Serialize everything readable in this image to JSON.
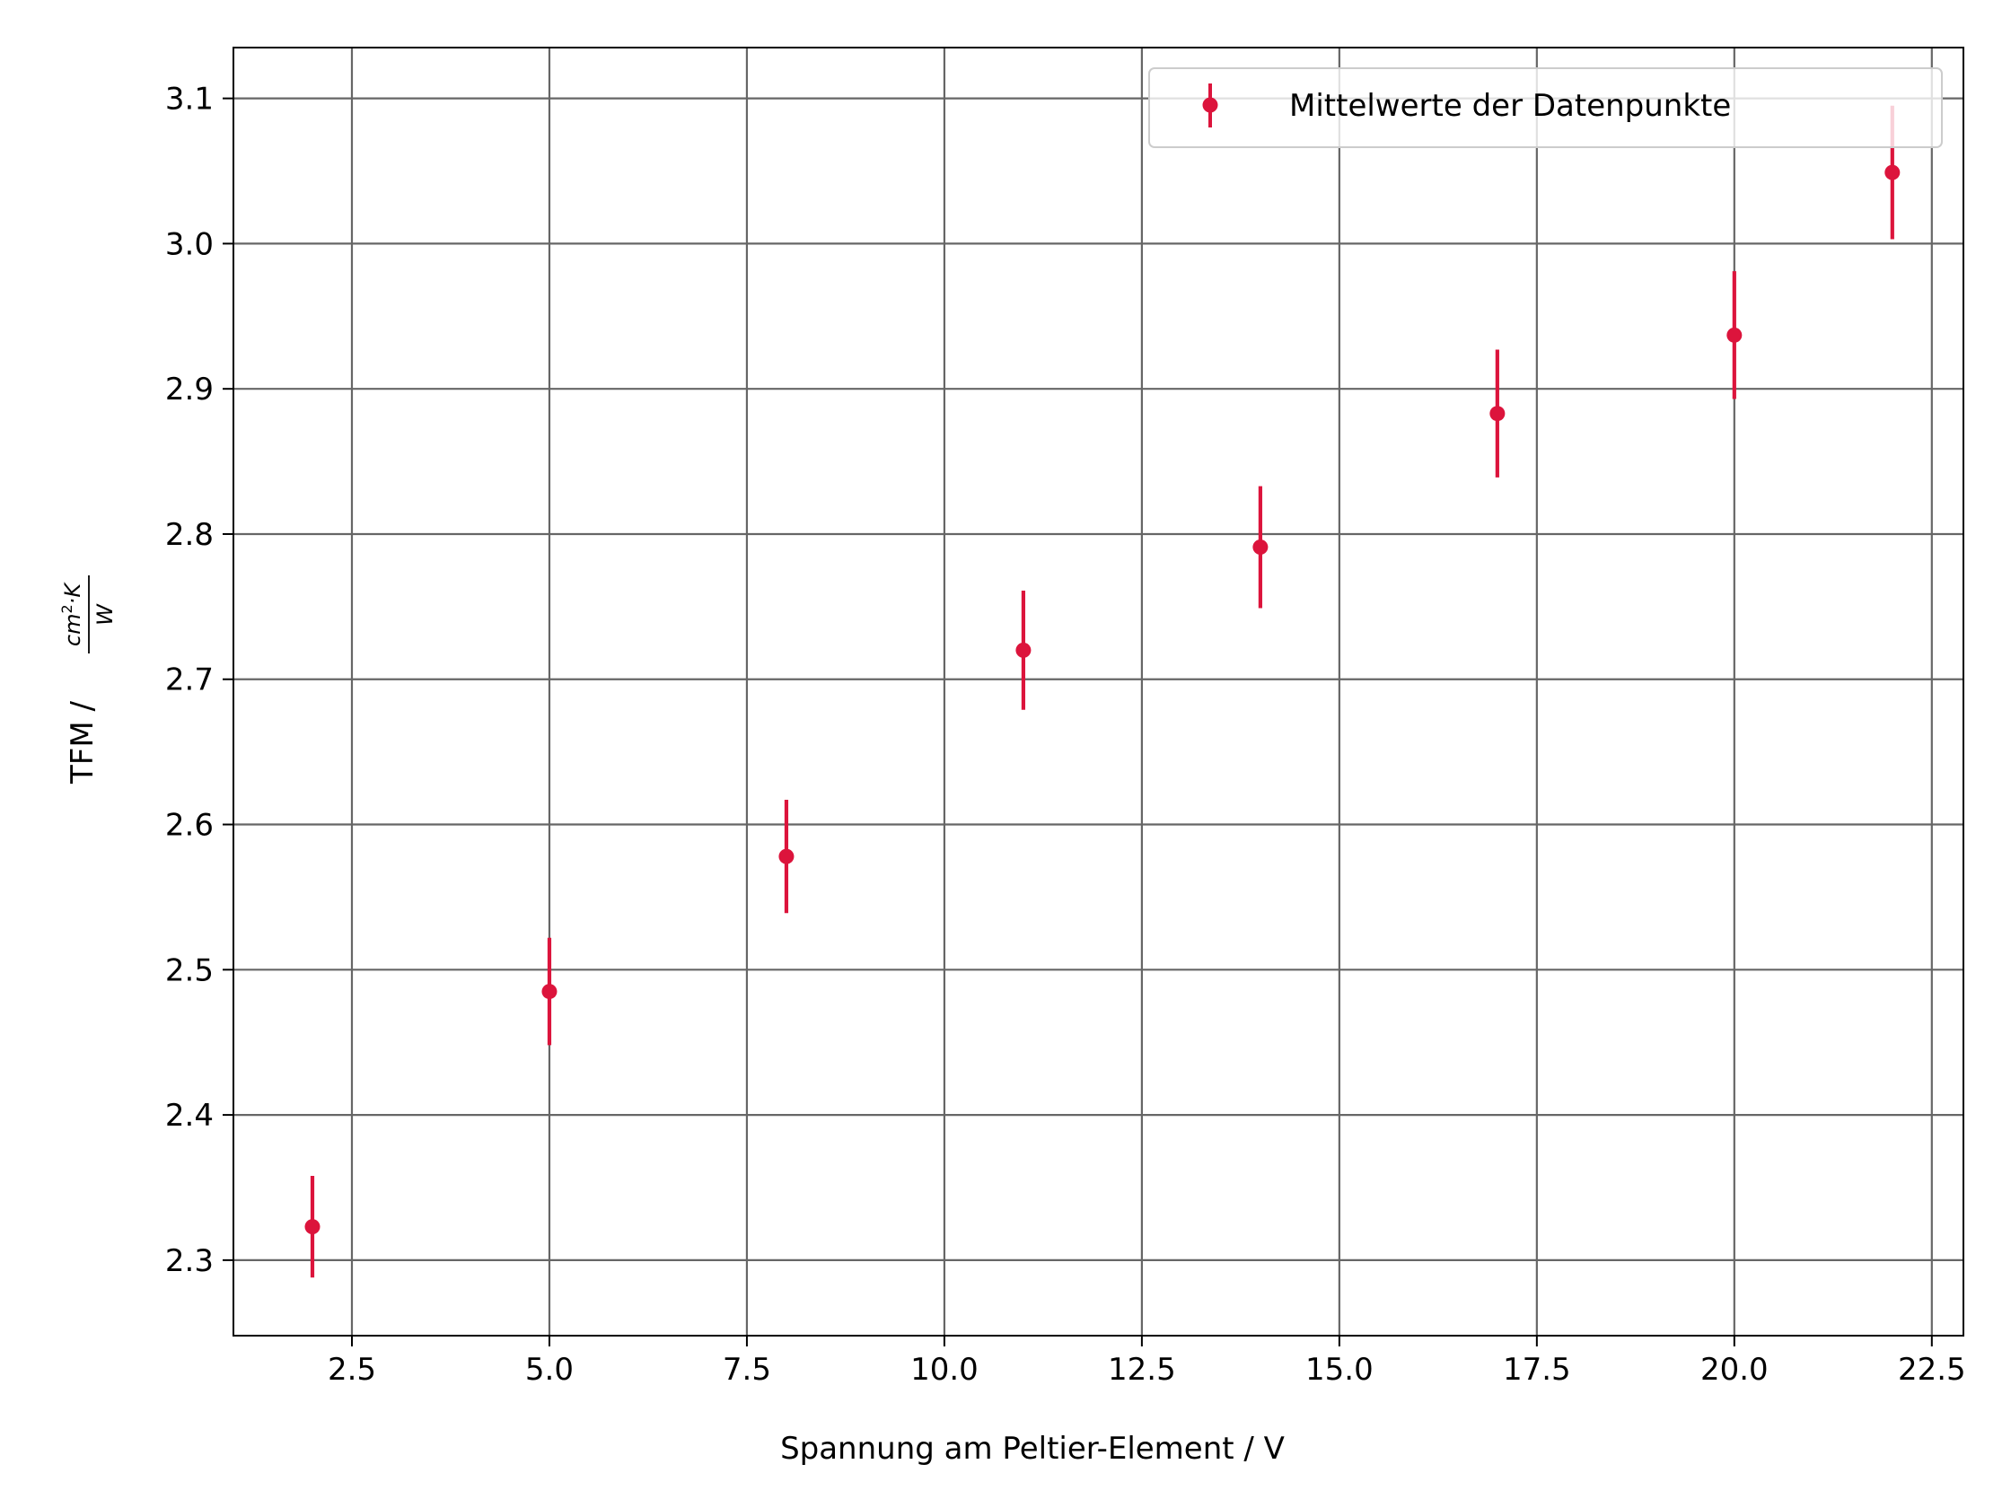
{
  "chart_data": {
    "type": "scatter",
    "title": "",
    "xlabel": "Spannung am Peltier-Element / V",
    "ylabel": {
      "prefix": "TFM / ",
      "numerator_base": "cm",
      "numerator_exp": "2",
      "numerator_rest": "·K",
      "denominator": "W"
    },
    "xlim": [
      1.0,
      22.9
    ],
    "ylim": [
      2.248,
      3.135
    ],
    "xticks": [
      2.5,
      5.0,
      7.5,
      10.0,
      12.5,
      15.0,
      17.5,
      20.0,
      22.5
    ],
    "xtick_labels": [
      "2.5",
      "5.0",
      "7.5",
      "10.0",
      "12.5",
      "15.0",
      "17.5",
      "20.0",
      "22.5"
    ],
    "yticks": [
      2.3,
      2.4,
      2.5,
      2.6,
      2.7,
      2.8,
      2.9,
      3.0,
      3.1
    ],
    "ytick_labels": [
      "2.3",
      "2.4",
      "2.5",
      "2.6",
      "2.7",
      "2.8",
      "2.9",
      "3.0",
      "3.1"
    ],
    "grid": true,
    "legend_position": "top-right",
    "series": [
      {
        "name": "Mittelwerte der Datenpunkte",
        "color": "#dc143c",
        "x": [
          2,
          5,
          8,
          11,
          14,
          17,
          20,
          22
        ],
        "y": [
          2.323,
          2.485,
          2.578,
          2.72,
          2.791,
          2.883,
          2.937,
          3.049
        ],
        "yerr": [
          0.035,
          0.037,
          0.039,
          0.041,
          0.042,
          0.044,
          0.044,
          0.046
        ]
      }
    ]
  }
}
